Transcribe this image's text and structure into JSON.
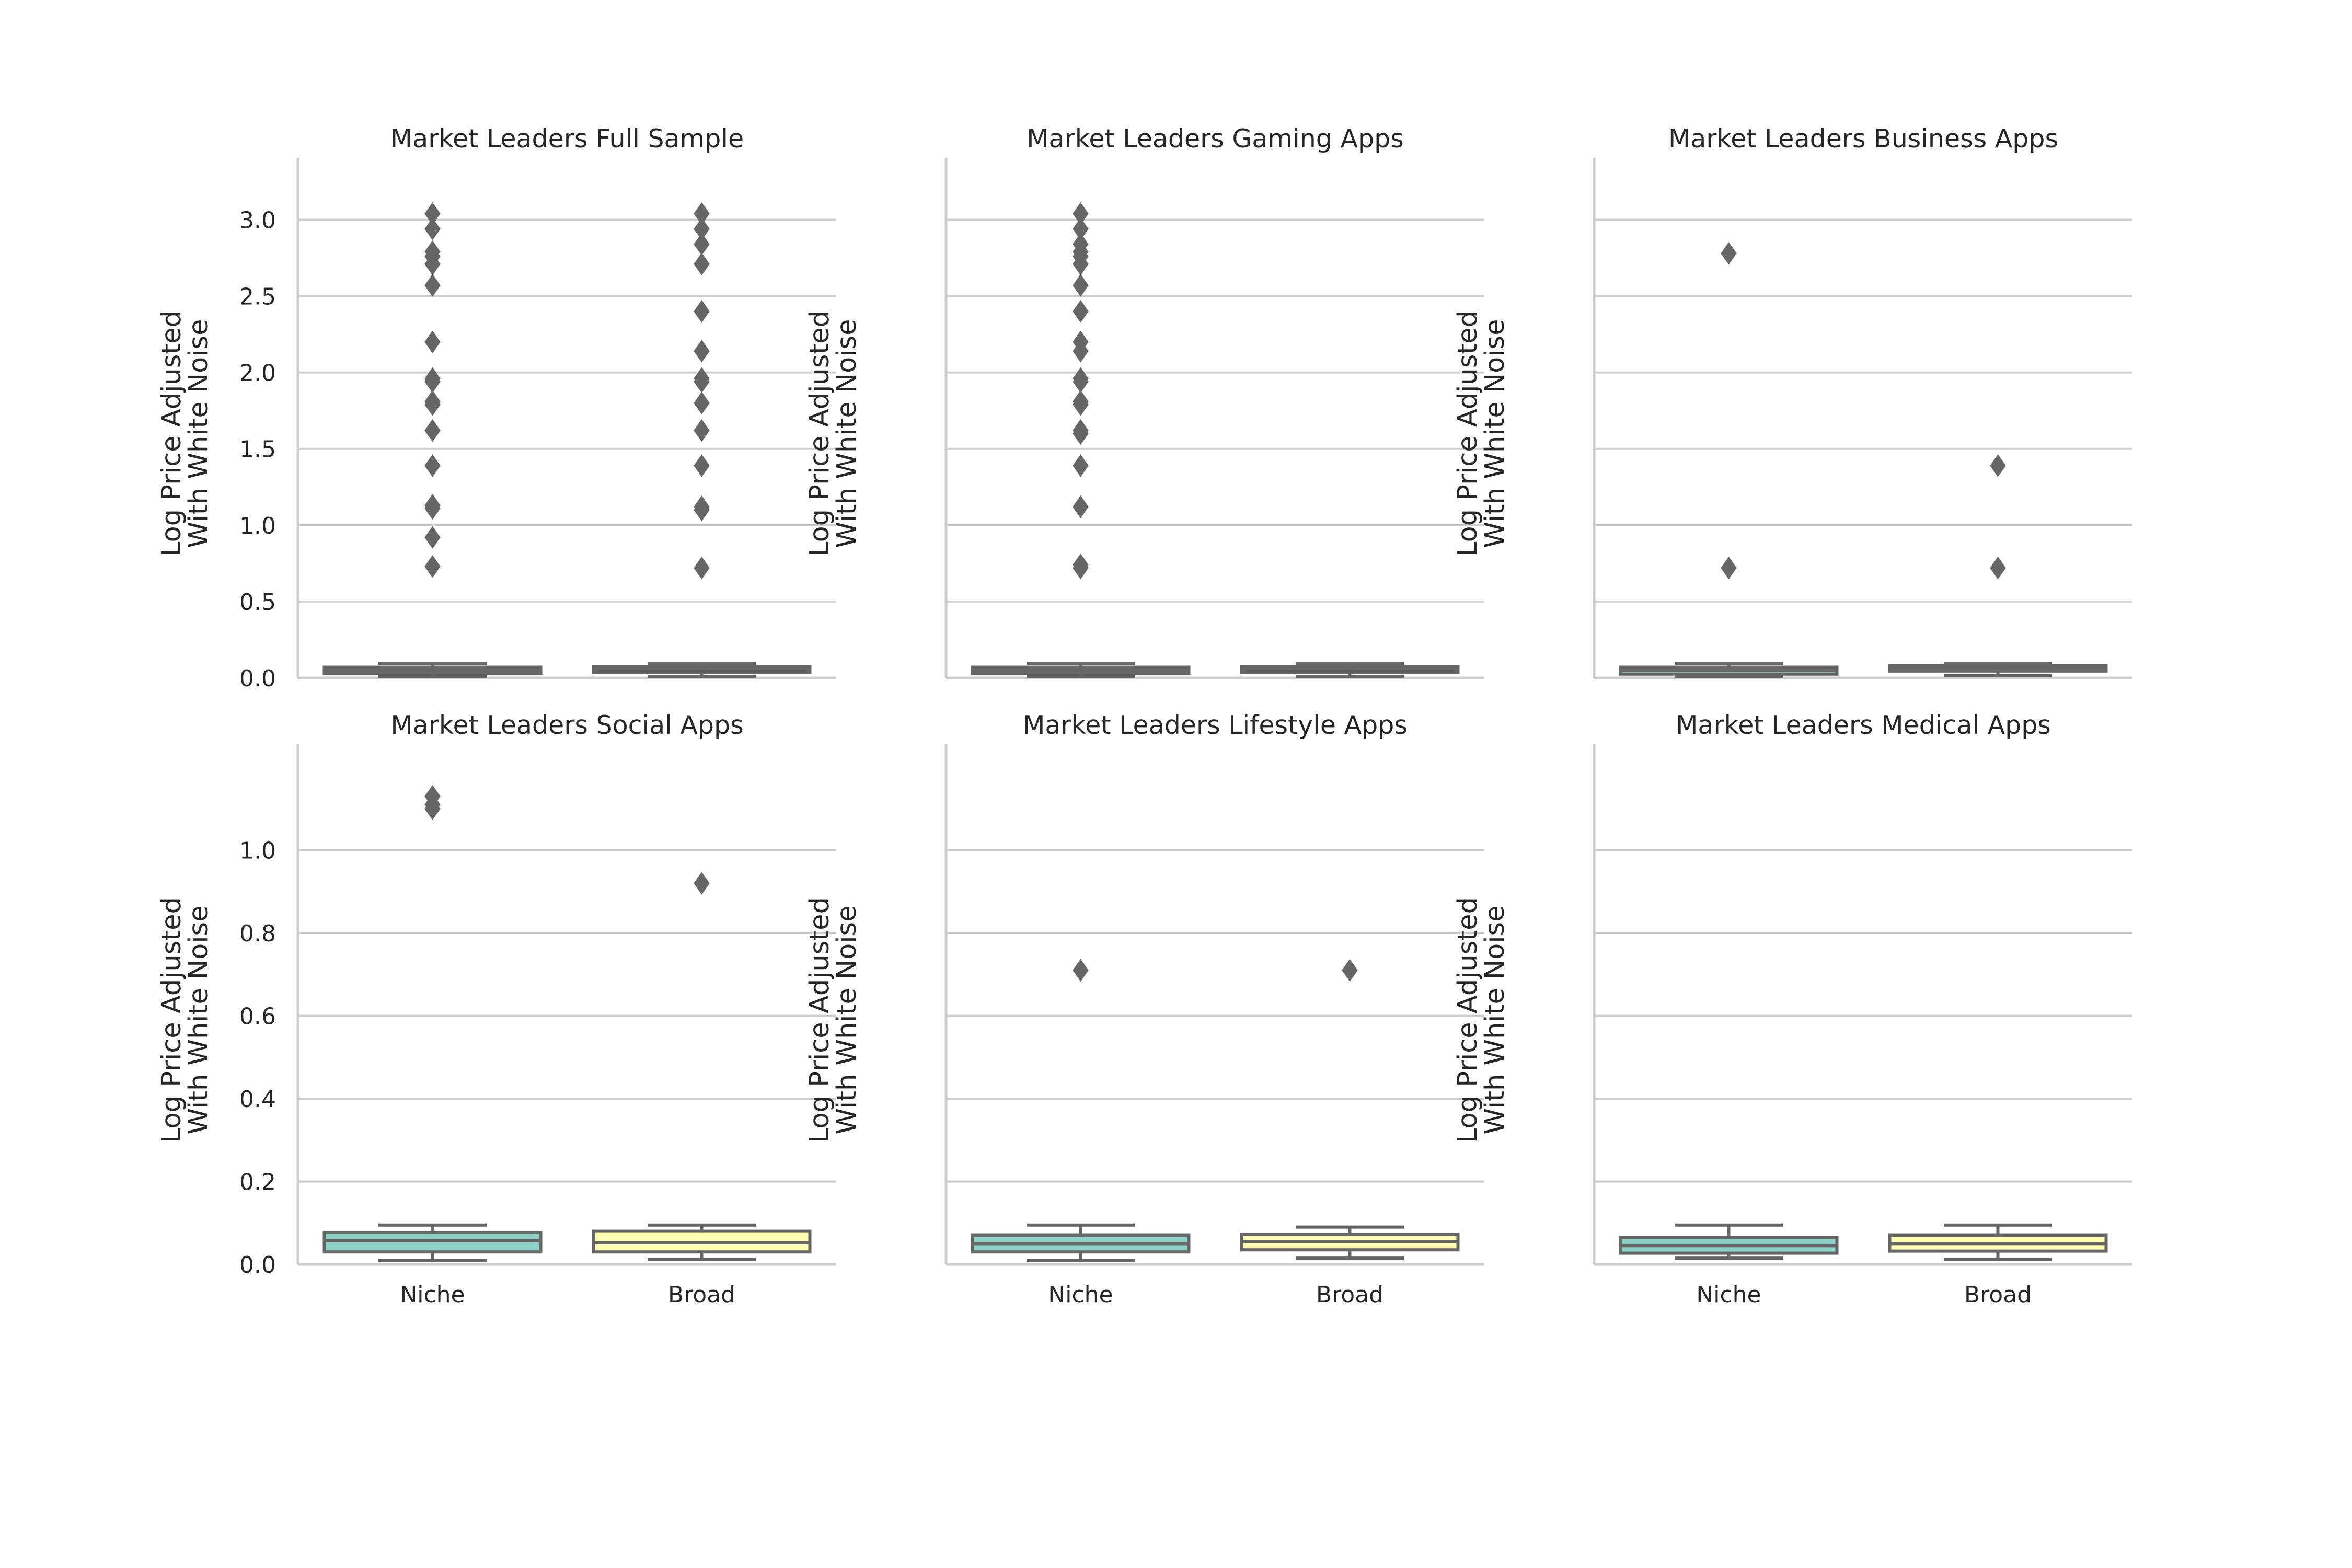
{
  "colors": {
    "niche": "#8dd3c7",
    "broad": "#ffffb3",
    "box_edge": "#666666",
    "grid": "#cccccc",
    "text": "#262626"
  },
  "chart_data": [
    {
      "type": "box",
      "title": "Market Leaders Full Sample",
      "ylabel": [
        "Log Price Adjusted",
        "With White Noise"
      ],
      "categories": [
        "Niche",
        "Broad"
      ],
      "ylim": [
        0,
        3.2
      ],
      "yticks": [
        0.0,
        0.5,
        1.0,
        1.5,
        2.0,
        2.5,
        3.0
      ],
      "yticklabels": [
        "0.0",
        "0.5",
        "1.0",
        "1.5",
        "2.0",
        "2.5",
        "3.0"
      ],
      "show_xticklabels": false,
      "boxes": [
        {
          "name": "Niche",
          "whislo": 0.01,
          "q1": 0.03,
          "med": 0.05,
          "q3": 0.07,
          "whishi": 0.095,
          "outliers": [
            3.04,
            2.94,
            2.79,
            2.76,
            2.71,
            2.57,
            2.2,
            1.96,
            1.94,
            1.81,
            1.79,
            1.62,
            1.39,
            1.13,
            1.11,
            0.92,
            0.73
          ]
        },
        {
          "name": "Broad",
          "whislo": 0.01,
          "q1": 0.035,
          "med": 0.055,
          "q3": 0.075,
          "whishi": 0.095,
          "outliers": [
            3.04,
            2.94,
            2.84,
            2.71,
            2.4,
            2.14,
            1.96,
            1.94,
            1.8,
            1.62,
            1.39,
            1.12,
            1.1,
            0.72
          ]
        }
      ]
    },
    {
      "type": "box",
      "title": "Market Leaders Gaming Apps",
      "ylabel": [
        "Log Price Adjusted",
        "With White Noise"
      ],
      "categories": [
        "Niche",
        "Broad"
      ],
      "ylim": [
        0,
        3.2
      ],
      "yticks": [
        0.0,
        0.5,
        1.0,
        1.5,
        2.0,
        2.5,
        3.0
      ],
      "yticklabels": [],
      "show_xticklabels": false,
      "boxes": [
        {
          "name": "Niche",
          "whislo": 0.01,
          "q1": 0.03,
          "med": 0.05,
          "q3": 0.07,
          "whishi": 0.095,
          "outliers": [
            3.04,
            2.94,
            2.84,
            2.79,
            2.76,
            2.71,
            2.57,
            2.4,
            2.2,
            2.14,
            1.96,
            1.94,
            1.81,
            1.79,
            1.62,
            1.6,
            1.39,
            1.12,
            0.74,
            0.72
          ]
        },
        {
          "name": "Broad",
          "whislo": 0.01,
          "q1": 0.035,
          "med": 0.055,
          "q3": 0.075,
          "whishi": 0.095,
          "outliers": []
        }
      ]
    },
    {
      "type": "box",
      "title": "Market Leaders Business Apps",
      "ylabel": [
        "Log Price Adjusted",
        "With White Noise"
      ],
      "categories": [
        "Niche",
        "Broad"
      ],
      "ylim": [
        0,
        3.2
      ],
      "yticks": [
        0.0,
        0.5,
        1.0,
        1.5,
        2.0,
        2.5,
        3.0
      ],
      "yticklabels": [],
      "show_xticklabels": false,
      "boxes": [
        {
          "name": "Niche",
          "whislo": 0.01,
          "q1": 0.025,
          "med": 0.05,
          "q3": 0.07,
          "whishi": 0.095,
          "outliers": [
            2.78,
            0.72
          ]
        },
        {
          "name": "Broad",
          "whislo": 0.015,
          "q1": 0.045,
          "med": 0.065,
          "q3": 0.08,
          "whishi": 0.095,
          "outliers": [
            1.39,
            0.72
          ]
        }
      ]
    },
    {
      "type": "box",
      "title": "Market Leaders Social Apps",
      "ylabel": [
        "Log Price Adjusted",
        "With White Noise"
      ],
      "categories": [
        "Niche",
        "Broad"
      ],
      "ylim": [
        0,
        1.18
      ],
      "yticks": [
        0.0,
        0.2,
        0.4,
        0.6,
        0.8,
        1.0
      ],
      "yticklabels": [
        "0.0",
        "0.2",
        "0.4",
        "0.6",
        "0.8",
        "1.0"
      ],
      "show_xticklabels": true,
      "boxes": [
        {
          "name": "Niche",
          "whislo": 0.01,
          "q1": 0.03,
          "med": 0.057,
          "q3": 0.077,
          "whishi": 0.095,
          "outliers": [
            1.13,
            1.11,
            1.1
          ]
        },
        {
          "name": "Broad",
          "whislo": 0.012,
          "q1": 0.03,
          "med": 0.052,
          "q3": 0.08,
          "whishi": 0.095,
          "outliers": [
            0.92
          ]
        }
      ]
    },
    {
      "type": "box",
      "title": "Market Leaders Lifestyle Apps",
      "ylabel": [
        "Log Price Adjusted",
        "With White Noise"
      ],
      "categories": [
        "Niche",
        "Broad"
      ],
      "ylim": [
        0,
        1.18
      ],
      "yticks": [
        0.0,
        0.2,
        0.4,
        0.6,
        0.8,
        1.0
      ],
      "yticklabels": [],
      "show_xticklabels": true,
      "boxes": [
        {
          "name": "Niche",
          "whislo": 0.01,
          "q1": 0.03,
          "med": 0.05,
          "q3": 0.07,
          "whishi": 0.095,
          "outliers": [
            0.71
          ]
        },
        {
          "name": "Broad",
          "whislo": 0.015,
          "q1": 0.035,
          "med": 0.055,
          "q3": 0.072,
          "whishi": 0.09,
          "outliers": [
            0.71
          ]
        }
      ]
    },
    {
      "type": "box",
      "title": "Market Leaders Medical Apps",
      "ylabel": [
        "Log Price Adjusted",
        "With White Noise"
      ],
      "categories": [
        "Niche",
        "Broad"
      ],
      "ylim": [
        0,
        1.18
      ],
      "yticks": [
        0.0,
        0.2,
        0.4,
        0.6,
        0.8,
        1.0
      ],
      "yticklabels": [],
      "show_xticklabels": true,
      "boxes": [
        {
          "name": "Niche",
          "whislo": 0.015,
          "q1": 0.027,
          "med": 0.045,
          "q3": 0.065,
          "whishi": 0.095,
          "outliers": []
        },
        {
          "name": "Broad",
          "whislo": 0.012,
          "q1": 0.032,
          "med": 0.05,
          "q3": 0.07,
          "whishi": 0.095,
          "outliers": []
        }
      ]
    }
  ]
}
